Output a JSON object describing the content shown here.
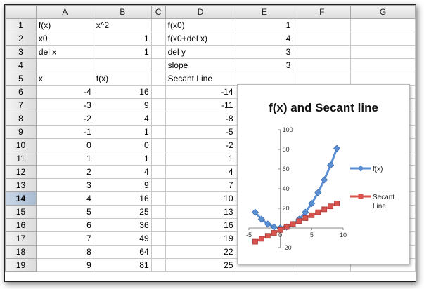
{
  "columns": [
    "A",
    "B",
    "C",
    "D",
    "E",
    "F",
    "G"
  ],
  "rows": [
    {
      "n": "1",
      "A": "f(x)",
      "B": "x^2",
      "C": "",
      "D": "f(x0)",
      "E": "1"
    },
    {
      "n": "2",
      "A": "x0",
      "B": "1",
      "C": "",
      "D": "f(x0+del x)",
      "E": "4"
    },
    {
      "n": "3",
      "A": "del x",
      "B": "1",
      "C": "",
      "D": "del y",
      "E": "3"
    },
    {
      "n": "4",
      "A": "",
      "B": "",
      "C": "",
      "D": "slope",
      "E": "3"
    },
    {
      "n": "5",
      "A": "x",
      "B": "f(x)",
      "C": "",
      "D": "Secant Line",
      "E": ""
    },
    {
      "n": "6",
      "A": "-4",
      "B": "16",
      "C": "",
      "D": "-14",
      "E": ""
    },
    {
      "n": "7",
      "A": "-3",
      "B": "9",
      "C": "",
      "D": "-11",
      "E": ""
    },
    {
      "n": "8",
      "A": "-2",
      "B": "4",
      "C": "",
      "D": "-8",
      "E": ""
    },
    {
      "n": "9",
      "A": "-1",
      "B": "1",
      "C": "",
      "D": "-5",
      "E": ""
    },
    {
      "n": "10",
      "A": "0",
      "B": "0",
      "C": "",
      "D": "-2",
      "E": ""
    },
    {
      "n": "11",
      "A": "1",
      "B": "1",
      "C": "",
      "D": "1",
      "E": ""
    },
    {
      "n": "12",
      "A": "2",
      "B": "4",
      "C": "",
      "D": "4",
      "E": ""
    },
    {
      "n": "13",
      "A": "3",
      "B": "9",
      "C": "",
      "D": "7",
      "E": ""
    },
    {
      "n": "14",
      "A": "4",
      "B": "16",
      "C": "",
      "D": "10",
      "E": ""
    },
    {
      "n": "15",
      "A": "5",
      "B": "25",
      "C": "",
      "D": "13",
      "E": ""
    },
    {
      "n": "16",
      "A": "6",
      "B": "36",
      "C": "",
      "D": "16",
      "E": ""
    },
    {
      "n": "17",
      "A": "7",
      "B": "49",
      "C": "",
      "D": "19",
      "E": ""
    },
    {
      "n": "18",
      "A": "8",
      "B": "64",
      "C": "",
      "D": "22",
      "E": ""
    },
    {
      "n": "19",
      "A": "9",
      "B": "81",
      "C": "",
      "D": "25",
      "E": ""
    }
  ],
  "selected_row": "14",
  "chart_data": {
    "type": "scatter",
    "title": "f(x) and Secant line",
    "xlabel": "",
    "ylabel": "",
    "xlim": [
      -5,
      10
    ],
    "ylim": [
      -20,
      100
    ],
    "xticks": [
      "-5",
      "0",
      "5",
      "10"
    ],
    "yticks": [
      "-20",
      "0",
      "20",
      "40",
      "60",
      "80",
      "100"
    ],
    "legend": "right",
    "grid": false,
    "series": [
      {
        "name": "f(x)",
        "color": "#5b8fd4",
        "marker": "diamond",
        "x": [
          -4,
          -3,
          -2,
          -1,
          0,
          1,
          2,
          3,
          4,
          5,
          6,
          7,
          8,
          9
        ],
        "y": [
          16,
          9,
          4,
          1,
          0,
          1,
          4,
          9,
          16,
          25,
          36,
          49,
          64,
          81
        ]
      },
      {
        "name": "Secant Line",
        "color": "#d9534f",
        "marker": "square",
        "x": [
          -4,
          -3,
          -2,
          -1,
          0,
          1,
          2,
          3,
          4,
          5,
          6,
          7,
          8,
          9
        ],
        "y": [
          -14,
          -11,
          -8,
          -5,
          -2,
          1,
          4,
          7,
          10,
          13,
          16,
          19,
          22,
          25
        ]
      }
    ]
  }
}
